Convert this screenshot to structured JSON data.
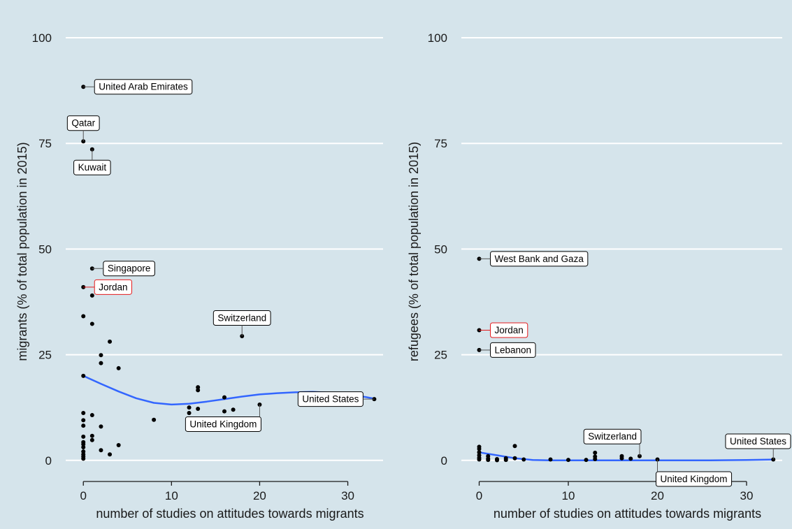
{
  "chart_data": [
    {
      "type": "scatter",
      "panel": "left",
      "xlabel": "number of studies on attitudes towards migrants",
      "ylabel": "migrants (% of total population in 2015)",
      "xlim": [
        -2,
        34
      ],
      "ylim": [
        -5,
        101
      ],
      "xticks": [
        0,
        10,
        20,
        30
      ],
      "yticks": [
        0,
        25,
        50,
        75,
        100
      ],
      "grid": "horizontal",
      "background": "#d5e4eb",
      "smooth_color": "#3366ff",
      "points": [
        {
          "x": 0,
          "y": 88.4
        },
        {
          "x": 0,
          "y": 75.5
        },
        {
          "x": 1,
          "y": 73.6
        },
        {
          "x": 1,
          "y": 45.4
        },
        {
          "x": 0,
          "y": 41.0
        },
        {
          "x": 1,
          "y": 39.0
        },
        {
          "x": 0,
          "y": 34.1
        },
        {
          "x": 1,
          "y": 32.3
        },
        {
          "x": 3,
          "y": 28.1
        },
        {
          "x": 2,
          "y": 24.9
        },
        {
          "x": 2,
          "y": 23.0
        },
        {
          "x": 4,
          "y": 21.8
        },
        {
          "x": 0,
          "y": 20.0
        },
        {
          "x": 0,
          "y": 11.2
        },
        {
          "x": 1,
          "y": 10.7
        },
        {
          "x": 0,
          "y": 9.5
        },
        {
          "x": 0,
          "y": 8.2
        },
        {
          "x": 2,
          "y": 8.0
        },
        {
          "x": 0,
          "y": 5.6
        },
        {
          "x": 1,
          "y": 5.8
        },
        {
          "x": 1,
          "y": 4.8
        },
        {
          "x": 0,
          "y": 4.3
        },
        {
          "x": 0,
          "y": 3.8
        },
        {
          "x": 0,
          "y": 3.1
        },
        {
          "x": 4,
          "y": 3.6
        },
        {
          "x": 0,
          "y": 2.1
        },
        {
          "x": 0,
          "y": 1.4
        },
        {
          "x": 0,
          "y": 0.9
        },
        {
          "x": 0,
          "y": 0.4
        },
        {
          "x": 2,
          "y": 2.4
        },
        {
          "x": 3,
          "y": 1.4
        },
        {
          "x": 8,
          "y": 9.6
        },
        {
          "x": 12,
          "y": 12.5
        },
        {
          "x": 12,
          "y": 11.2
        },
        {
          "x": 13,
          "y": 17.3
        },
        {
          "x": 13,
          "y": 16.6
        },
        {
          "x": 13,
          "y": 12.2
        },
        {
          "x": 16,
          "y": 14.9
        },
        {
          "x": 16,
          "y": 11.6
        },
        {
          "x": 17,
          "y": 12.0
        },
        {
          "x": 18,
          "y": 29.4
        },
        {
          "x": 20,
          "y": 13.2
        },
        {
          "x": 33,
          "y": 14.5
        }
      ],
      "smooth": [
        {
          "x": 0,
          "y": 20.0
        },
        {
          "x": 2,
          "y": 18.1
        },
        {
          "x": 4,
          "y": 16.3
        },
        {
          "x": 6,
          "y": 14.7
        },
        {
          "x": 8,
          "y": 13.6
        },
        {
          "x": 10,
          "y": 13.2
        },
        {
          "x": 12,
          "y": 13.4
        },
        {
          "x": 14,
          "y": 13.9
        },
        {
          "x": 16,
          "y": 14.5
        },
        {
          "x": 18,
          "y": 15.1
        },
        {
          "x": 20,
          "y": 15.6
        },
        {
          "x": 22,
          "y": 15.9
        },
        {
          "x": 24,
          "y": 16.1
        },
        {
          "x": 26,
          "y": 16.2
        },
        {
          "x": 28,
          "y": 16.0
        },
        {
          "x": 30,
          "y": 15.6
        },
        {
          "x": 32,
          "y": 15.0
        },
        {
          "x": 33,
          "y": 14.6
        }
      ],
      "annotations": [
        {
          "label": "United Arab Emirates",
          "x": 0,
          "y": 88.4,
          "side": "right",
          "color": "#000000"
        },
        {
          "label": "Qatar",
          "x": 0,
          "y": 75.5,
          "side": "above",
          "color": "#000000"
        },
        {
          "label": "Kuwait",
          "x": 1,
          "y": 73.6,
          "side": "below",
          "color": "#000000"
        },
        {
          "label": "Singapore",
          "x": 1,
          "y": 45.4,
          "side": "right",
          "color": "#000000"
        },
        {
          "label": "Jordan",
          "x": 0,
          "y": 41.0,
          "side": "right",
          "color": "#e41a1c"
        },
        {
          "label": "Switzerland",
          "x": 18,
          "y": 29.4,
          "side": "above",
          "color": "#000000"
        },
        {
          "label": "United States",
          "x": 33,
          "y": 14.5,
          "side": "left",
          "color": "#000000"
        },
        {
          "label": "United Kingdom",
          "x": 20,
          "y": 13.2,
          "side": "below-left",
          "color": "#000000"
        }
      ]
    },
    {
      "type": "scatter",
      "panel": "right",
      "xlabel": "number of studies on attitudes towards migrants",
      "ylabel": "refugees (% of total population in 2015)",
      "xlim": [
        -2,
        34
      ],
      "ylim": [
        -5,
        101
      ],
      "xticks": [
        0,
        10,
        20,
        30
      ],
      "yticks": [
        0,
        25,
        50,
        75,
        100
      ],
      "grid": "horizontal",
      "background": "#d5e4eb",
      "smooth_color": "#3366ff",
      "points": [
        {
          "x": 0,
          "y": 47.7
        },
        {
          "x": 0,
          "y": 30.8
        },
        {
          "x": 0,
          "y": 26.1
        },
        {
          "x": 0,
          "y": 3.2
        },
        {
          "x": 0,
          "y": 2.7
        },
        {
          "x": 0,
          "y": 1.9
        },
        {
          "x": 0,
          "y": 1.2
        },
        {
          "x": 0,
          "y": 0.6
        },
        {
          "x": 0,
          "y": 0.2
        },
        {
          "x": 1,
          "y": 1.0
        },
        {
          "x": 1,
          "y": 0.4
        },
        {
          "x": 1,
          "y": 0.1
        },
        {
          "x": 2,
          "y": 0.3
        },
        {
          "x": 2,
          "y": 0.05
        },
        {
          "x": 3,
          "y": 0.5
        },
        {
          "x": 3,
          "y": 0.1
        },
        {
          "x": 4,
          "y": 3.4
        },
        {
          "x": 4,
          "y": 0.5
        },
        {
          "x": 5,
          "y": 0.2
        },
        {
          "x": 8,
          "y": 0.2
        },
        {
          "x": 10,
          "y": 0.1
        },
        {
          "x": 12,
          "y": 0.1
        },
        {
          "x": 13,
          "y": 1.8
        },
        {
          "x": 13,
          "y": 0.9
        },
        {
          "x": 13,
          "y": 0.3
        },
        {
          "x": 16,
          "y": 1.0
        },
        {
          "x": 16,
          "y": 0.5
        },
        {
          "x": 17,
          "y": 0.4
        },
        {
          "x": 18,
          "y": 1.0
        },
        {
          "x": 20,
          "y": 0.2
        },
        {
          "x": 33,
          "y": 0.2
        }
      ],
      "smooth": [
        {
          "x": 0,
          "y": 1.9
        },
        {
          "x": 2,
          "y": 1.2
        },
        {
          "x": 4,
          "y": 0.5
        },
        {
          "x": 6,
          "y": 0.1
        },
        {
          "x": 8,
          "y": 0.0
        },
        {
          "x": 10,
          "y": 0.0
        },
        {
          "x": 14,
          "y": 0.0
        },
        {
          "x": 18,
          "y": 0.0
        },
        {
          "x": 22,
          "y": 0.0
        },
        {
          "x": 26,
          "y": 0.0
        },
        {
          "x": 30,
          "y": 0.1
        },
        {
          "x": 33,
          "y": 0.2
        }
      ],
      "annotations": [
        {
          "label": "West Bank and Gaza",
          "x": 0,
          "y": 47.7,
          "side": "right",
          "color": "#000000"
        },
        {
          "label": "Jordan",
          "x": 0,
          "y": 30.8,
          "side": "right",
          "color": "#e41a1c"
        },
        {
          "label": "Lebanon",
          "x": 0,
          "y": 26.1,
          "side": "right",
          "color": "#000000"
        },
        {
          "label": "Switzerland",
          "x": 18,
          "y": 1.0,
          "side": "above-left",
          "color": "#000000"
        },
        {
          "label": "United States",
          "x": 33,
          "y": 0.2,
          "side": "above",
          "color": "#000000"
        },
        {
          "label": "United Kingdom",
          "x": 20,
          "y": 0.2,
          "side": "below-right",
          "color": "#000000"
        }
      ]
    }
  ]
}
